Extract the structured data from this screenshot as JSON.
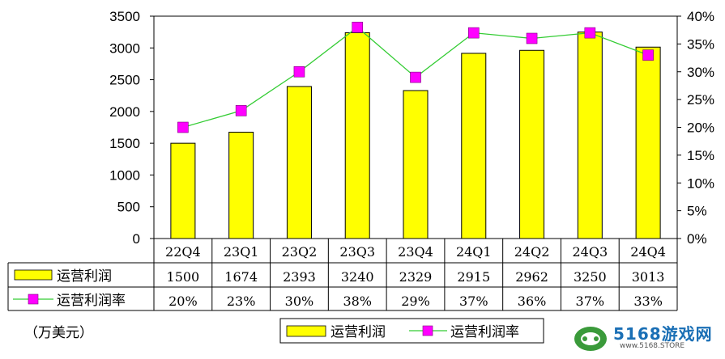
{
  "unit_label": "（万美元）",
  "watermark": {
    "brand": "5168游戏网",
    "url": "www.5168.STORE"
  },
  "chart_data": {
    "type": "bar",
    "categories": [
      "22Q4",
      "23Q1",
      "23Q2",
      "23Q3",
      "23Q4",
      "24Q1",
      "24Q2",
      "24Q3",
      "24Q4"
    ],
    "series": [
      {
        "name": "运营利润",
        "type": "bar",
        "axis": "left",
        "color": "#ffff00",
        "values": [
          1500,
          1674,
          2393,
          3240,
          2329,
          2915,
          2962,
          3250,
          3013
        ]
      },
      {
        "name": "运营利润率",
        "type": "line",
        "axis": "right",
        "color": "#ff00ff",
        "line_color": "#33cc33",
        "values": [
          0.2,
          0.23,
          0.3,
          0.38,
          0.29,
          0.37,
          0.36,
          0.37,
          0.33
        ]
      }
    ],
    "table_values": {
      "bar": [
        "1500",
        "1674",
        "2393",
        "3240",
        "2329",
        "2915",
        "2962",
        "3250",
        "3013"
      ],
      "line": [
        "20%",
        "23%",
        "30%",
        "38%",
        "29%",
        "37%",
        "36%",
        "37%",
        "33%"
      ]
    },
    "y_left": {
      "min": 0,
      "max": 3500,
      "step": 500,
      "ticks": [
        "0",
        "500",
        "1000",
        "1500",
        "2000",
        "2500",
        "3000",
        "3500"
      ]
    },
    "y_right": {
      "min": 0,
      "max": 0.4,
      "step": 0.05,
      "ticks": [
        "0%",
        "5%",
        "10%",
        "15%",
        "20%",
        "25%",
        "30%",
        "35%",
        "40%"
      ]
    },
    "grid": false,
    "legend_position": "bottom",
    "title": "",
    "xlabel": "",
    "ylabel": ""
  }
}
